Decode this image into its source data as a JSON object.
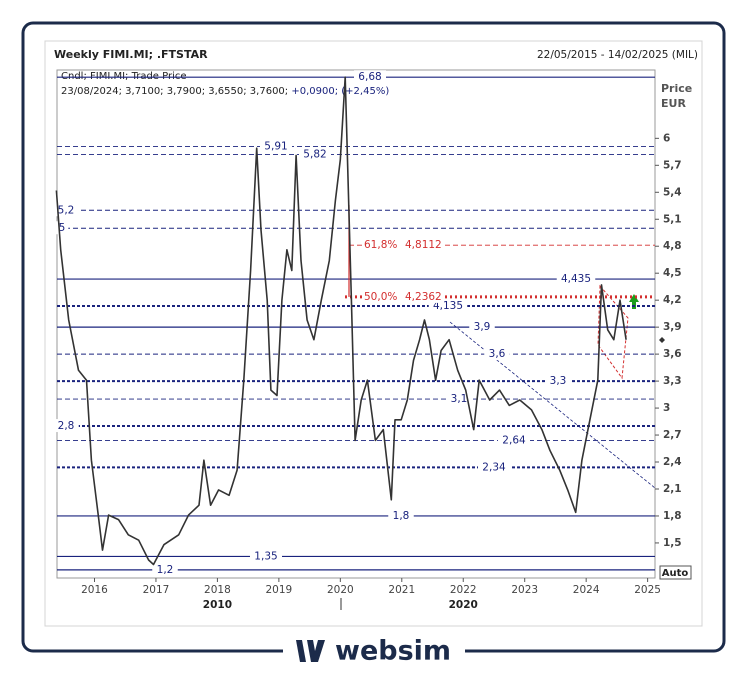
{
  "chart_data": {
    "type": "line",
    "title": "Weekly FIMI.MI; .FTSTAR",
    "date_range": "22/05/2015 - 14/02/2025 (MIL)",
    "subtitle": "Cndl; FIMI.MI; Trade Price",
    "ohlc_info": "23/08/2024; 3,7100; 3,7900; 3,6550; 3,7600;",
    "change_info": "+0,0900; (+2,45%)",
    "y_label": "Price",
    "y_unit": "EUR",
    "scale_mode": "Auto",
    "decade_labels": [
      {
        "value": 2018,
        "label": "2010"
      },
      {
        "value": 2022,
        "label": "2020"
      }
    ],
    "brand": "websim",
    "xlim": [
      2015.39,
      2025.12
    ],
    "ylim": [
      1.11,
      6.76
    ],
    "xticks": [
      2016,
      2017,
      2018,
      2019,
      2020,
      2021,
      2022,
      2023,
      2024,
      2025
    ],
    "yticks": [
      {
        "value": 1.5,
        "label": "1,5"
      },
      {
        "value": 1.8,
        "label": "1,8"
      },
      {
        "value": 2.1,
        "label": "2,1"
      },
      {
        "value": 2.4,
        "label": "2,4"
      },
      {
        "value": 2.7,
        "label": "2,7"
      },
      3,
      {
        "value": 3.3,
        "label": "3,3"
      },
      {
        "value": 3.6,
        "label": "3,6"
      },
      {
        "value": 3.9,
        "label": "3,9"
      },
      {
        "value": 4.2,
        "label": "4,2"
      },
      {
        "value": 4.5,
        "label": "4,5"
      },
      {
        "value": 4.8,
        "label": "4,8"
      },
      {
        "value": 5.1,
        "label": "5,1"
      },
      {
        "value": 5.4,
        "label": "5,4"
      },
      {
        "value": 5.7,
        "label": "5,7"
      },
      6
    ],
    "series": [
      {
        "name": "FIMI.MI",
        "color": "#333333",
        "x": [
          2015.38,
          2015.45,
          2015.58,
          2015.74,
          2015.87,
          2015.95,
          2016.07,
          2016.13,
          2016.23,
          2016.39,
          2016.55,
          2016.72,
          2016.88,
          2016.96,
          2017.13,
          2017.37,
          2017.53,
          2017.7,
          2017.78,
          2017.89,
          2018.02,
          2018.19,
          2018.32,
          2018.43,
          2018.54,
          2018.64,
          2018.71,
          2018.81,
          2018.87,
          2018.97,
          2019.05,
          2019.13,
          2019.21,
          2019.28,
          2019.36,
          2019.46,
          2019.57,
          2019.69,
          2019.82,
          2019.92,
          2020.0,
          2020.08,
          2020.14,
          2020.18,
          2020.24,
          2020.34,
          2020.44,
          2020.57,
          2020.7,
          2020.83,
          2020.89,
          2020.99,
          2021.09,
          2021.19,
          2021.29,
          2021.37,
          2021.45,
          2021.55,
          2021.64,
          2021.77,
          2021.91,
          2022.04,
          2022.17,
          2022.26,
          2022.43,
          2022.59,
          2022.75,
          2022.92,
          2023.11,
          2023.28,
          2023.41,
          2023.57,
          2023.7,
          2023.83,
          2023.93,
          2024.06,
          2024.19,
          2024.25,
          2024.35,
          2024.45,
          2024.55,
          2024.65
        ],
        "values": [
          5.42,
          4.76,
          3.98,
          3.42,
          3.31,
          2.42,
          1.76,
          1.42,
          1.81,
          1.76,
          1.59,
          1.53,
          1.31,
          1.26,
          1.48,
          1.59,
          1.81,
          1.92,
          2.42,
          1.92,
          2.09,
          2.03,
          2.31,
          3.31,
          4.53,
          5.89,
          4.98,
          4.2,
          3.2,
          3.14,
          4.2,
          4.76,
          4.53,
          5.81,
          4.64,
          3.98,
          3.76,
          4.2,
          4.64,
          5.31,
          5.76,
          6.68,
          5.2,
          4.2,
          2.64,
          3.09,
          3.31,
          2.64,
          2.76,
          1.98,
          2.87,
          2.87,
          3.09,
          3.53,
          3.76,
          3.98,
          3.76,
          3.31,
          3.64,
          3.76,
          3.42,
          3.2,
          2.76,
          3.31,
          3.09,
          3.2,
          3.03,
          3.09,
          2.98,
          2.76,
          2.53,
          2.31,
          2.09,
          1.84,
          2.42,
          2.87,
          3.31,
          4.37,
          3.87,
          3.76,
          4.2,
          3.76
        ]
      }
    ],
    "levels": [
      {
        "value": 6.68,
        "label": "6,68",
        "style": "solid"
      },
      {
        "value": 5.91,
        "label": "5,91",
        "style": "dashed"
      },
      {
        "value": 5.82,
        "label": "5,82",
        "style": "dashed"
      },
      {
        "value": 5.2,
        "label": "5,2",
        "style": "dashed"
      },
      {
        "value": 5,
        "label": "5",
        "style": "dashed"
      },
      {
        "value": 4.435,
        "label": "4,435",
        "style": "solid"
      },
      {
        "value": 4.135,
        "label": "4,135",
        "style": "dotted-bold"
      },
      {
        "value": 3.9,
        "label": "3,9",
        "style": "solid"
      },
      {
        "value": 3.6,
        "label": "3,6",
        "style": "dashed"
      },
      {
        "value": 3.3,
        "label": "3,3",
        "style": "dotted-bold"
      },
      {
        "value": 3.1,
        "label": "3,1",
        "style": "dashed"
      },
      {
        "value": 2.8,
        "label": "2,8",
        "style": "dotted-bold"
      },
      {
        "value": 2.64,
        "label": "2,64",
        "style": "dashed"
      },
      {
        "value": 2.34,
        "label": "2,34",
        "style": "dotted-bold"
      },
      {
        "value": 1.8,
        "label": "1,8",
        "style": "solid"
      },
      {
        "value": 1.35,
        "label": "1,35",
        "style": "solid"
      },
      {
        "value": 1.2,
        "label": "1,2",
        "style": "solid"
      }
    ],
    "fib_levels": [
      {
        "value": 4.8112,
        "ratio": "61,8%",
        "label": "4,8112",
        "style": "dashed"
      },
      {
        "value": 4.2362,
        "ratio": "50,0%",
        "label": "4,2362",
        "style": "dotted-bold"
      }
    ]
  }
}
